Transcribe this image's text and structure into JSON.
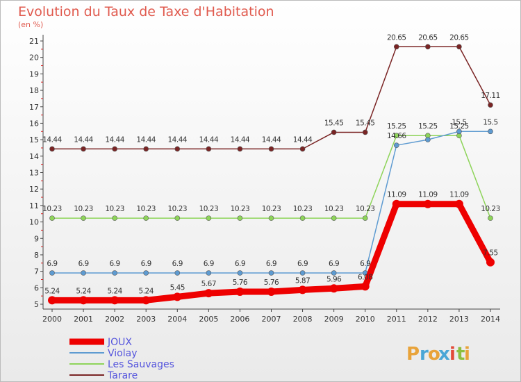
{
  "header": {
    "title": "Evolution du Taux de Taxe d'Habitation",
    "subtitle": "(en %)"
  },
  "logo": {
    "text": "Proxiti",
    "letters": [
      "P",
      "r",
      "o",
      "x",
      "i",
      "t",
      "i"
    ],
    "letter_colors": [
      "#e8a33a",
      "#4aa6d6",
      "#e8a33a",
      "#4aa6d6",
      "#e24b3a",
      "#8cbf3f",
      "#e8a33a"
    ]
  },
  "chart_data": {
    "type": "line",
    "x": [
      "2000",
      "2001",
      "2002",
      "2003",
      "2004",
      "2005",
      "2006",
      "2007",
      "2008",
      "2009",
      "2010",
      "2011",
      "2012",
      "2013",
      "2014"
    ],
    "yticks": [
      "5",
      "6",
      "7",
      "8",
      "9",
      "10",
      "11",
      "12",
      "13",
      "14",
      "15",
      "16",
      "17",
      "18",
      "19",
      "20",
      "21"
    ],
    "ylim": [
      5,
      21
    ],
    "grid": false,
    "legend": "bottom-left",
    "series": [
      {
        "name": "JOUX",
        "color": "#ee0000",
        "values": [
          5.24,
          5.24,
          5.24,
          5.24,
          5.45,
          5.67,
          5.76,
          5.76,
          5.87,
          5.96,
          6.08,
          11.09,
          11.09,
          11.09,
          7.55
        ],
        "labels": [
          "5.24",
          "5.24",
          "5.24",
          "5.24",
          "5.45",
          "5.67",
          "5.76",
          "5.76",
          "5.87",
          "5.96",
          "6.08",
          "11.09",
          "11.09",
          "11.09",
          "7.55"
        ]
      },
      {
        "name": "Violay",
        "color": "#5e9bd1",
        "values": [
          6.9,
          6.9,
          6.9,
          6.9,
          6.9,
          6.9,
          6.9,
          6.9,
          6.9,
          6.9,
          6.9,
          14.66,
          15.0,
          15.5,
          15.5
        ],
        "labels": [
          "6.9",
          "6.9",
          "6.9",
          "6.9",
          "6.9",
          "6.9",
          "6.9",
          "6.9",
          "6.9",
          "6.9",
          "6.9",
          "14.66",
          "",
          "15.5",
          "15.5"
        ]
      },
      {
        "name": "Les Sauvages",
        "color": "#8ed45a",
        "values": [
          10.23,
          10.23,
          10.23,
          10.23,
          10.23,
          10.23,
          10.23,
          10.23,
          10.23,
          10.23,
          10.23,
          15.25,
          15.25,
          15.25,
          10.23
        ],
        "labels": [
          "10.23",
          "10.23",
          "10.23",
          "10.23",
          "10.23",
          "10.23",
          "10.23",
          "10.23",
          "10.23",
          "10.23",
          "10.23",
          "15.25",
          "15.25",
          "15.25",
          "10.23"
        ]
      },
      {
        "name": "Tarare",
        "color": "#7a2424",
        "values": [
          14.44,
          14.44,
          14.44,
          14.44,
          14.44,
          14.44,
          14.44,
          14.44,
          14.44,
          15.45,
          15.45,
          20.65,
          20.65,
          20.65,
          17.11
        ],
        "labels": [
          "14.44",
          "14.44",
          "14.44",
          "14.44",
          "14.44",
          "14.44",
          "14.44",
          "14.44",
          "14.44",
          "15.45",
          "15.45",
          "20.65",
          "20.65",
          "20.65",
          "17.11"
        ]
      }
    ]
  }
}
